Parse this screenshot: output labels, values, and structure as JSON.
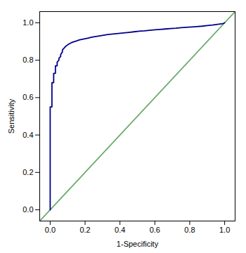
{
  "chart_data": {
    "type": "line",
    "xlabel": "1-Specificity",
    "ylabel": "Sensitivity",
    "xlim": [
      -0.06,
      1.06
    ],
    "ylim": [
      -0.06,
      1.06
    ],
    "xticks": [
      {
        "value": 0.0,
        "label": "0.0"
      },
      0.2,
      0.4,
      0.6,
      0.8,
      {
        "value": 1.0,
        "label": "1.0"
      }
    ],
    "yticks": [
      {
        "value": 0.0,
        "label": "0.0"
      },
      0.2,
      0.4,
      0.6,
      0.8,
      {
        "value": 1.0,
        "label": "1.0"
      }
    ],
    "grid": false,
    "series": [
      {
        "color": "#6aaa6a",
        "x": [
          -0.06,
          1.06
        ],
        "values": [
          -0.06,
          1.06
        ]
      },
      {
        "color": "#00008B",
        "x": [
          0.0,
          0.0,
          0.0,
          0.0,
          0.0,
          0.0,
          0.01,
          0.01,
          0.01,
          0.01,
          0.02,
          0.02,
          0.02,
          0.03,
          0.03,
          0.03,
          0.04,
          0.04,
          0.05,
          0.05,
          0.06,
          0.06,
          0.07,
          0.07,
          0.08,
          0.09,
          0.1,
          0.11,
          0.12,
          0.13,
          0.14,
          0.15,
          0.16,
          0.17,
          0.18,
          0.19,
          0.2,
          0.21,
          0.22,
          0.23,
          0.24,
          0.25,
          0.27,
          0.3,
          0.33,
          0.36,
          0.39,
          0.42,
          0.45,
          0.48,
          0.51,
          0.54,
          0.57,
          0.6,
          0.63,
          0.66,
          0.69,
          0.72,
          0.75,
          0.78,
          0.81,
          0.84,
          0.87,
          0.9,
          0.93,
          0.96,
          0.99,
          1.0
        ],
        "values": [
          0.0,
          0.02,
          0.06,
          0.12,
          0.26,
          0.55,
          0.55,
          0.6,
          0.65,
          0.68,
          0.68,
          0.71,
          0.73,
          0.73,
          0.75,
          0.77,
          0.77,
          0.79,
          0.8,
          0.81,
          0.82,
          0.83,
          0.845,
          0.855,
          0.865,
          0.875,
          0.882,
          0.888,
          0.893,
          0.897,
          0.9,
          0.903,
          0.906,
          0.909,
          0.911,
          0.913,
          0.915,
          0.917,
          0.919,
          0.921,
          0.923,
          0.925,
          0.928,
          0.933,
          0.937,
          0.94,
          0.943,
          0.946,
          0.949,
          0.952,
          0.955,
          0.957,
          0.96,
          0.963,
          0.965,
          0.967,
          0.969,
          0.971,
          0.974,
          0.976,
          0.978,
          0.98,
          0.982,
          0.985,
          0.988,
          0.992,
          0.996,
          1.0
        ]
      }
    ]
  }
}
